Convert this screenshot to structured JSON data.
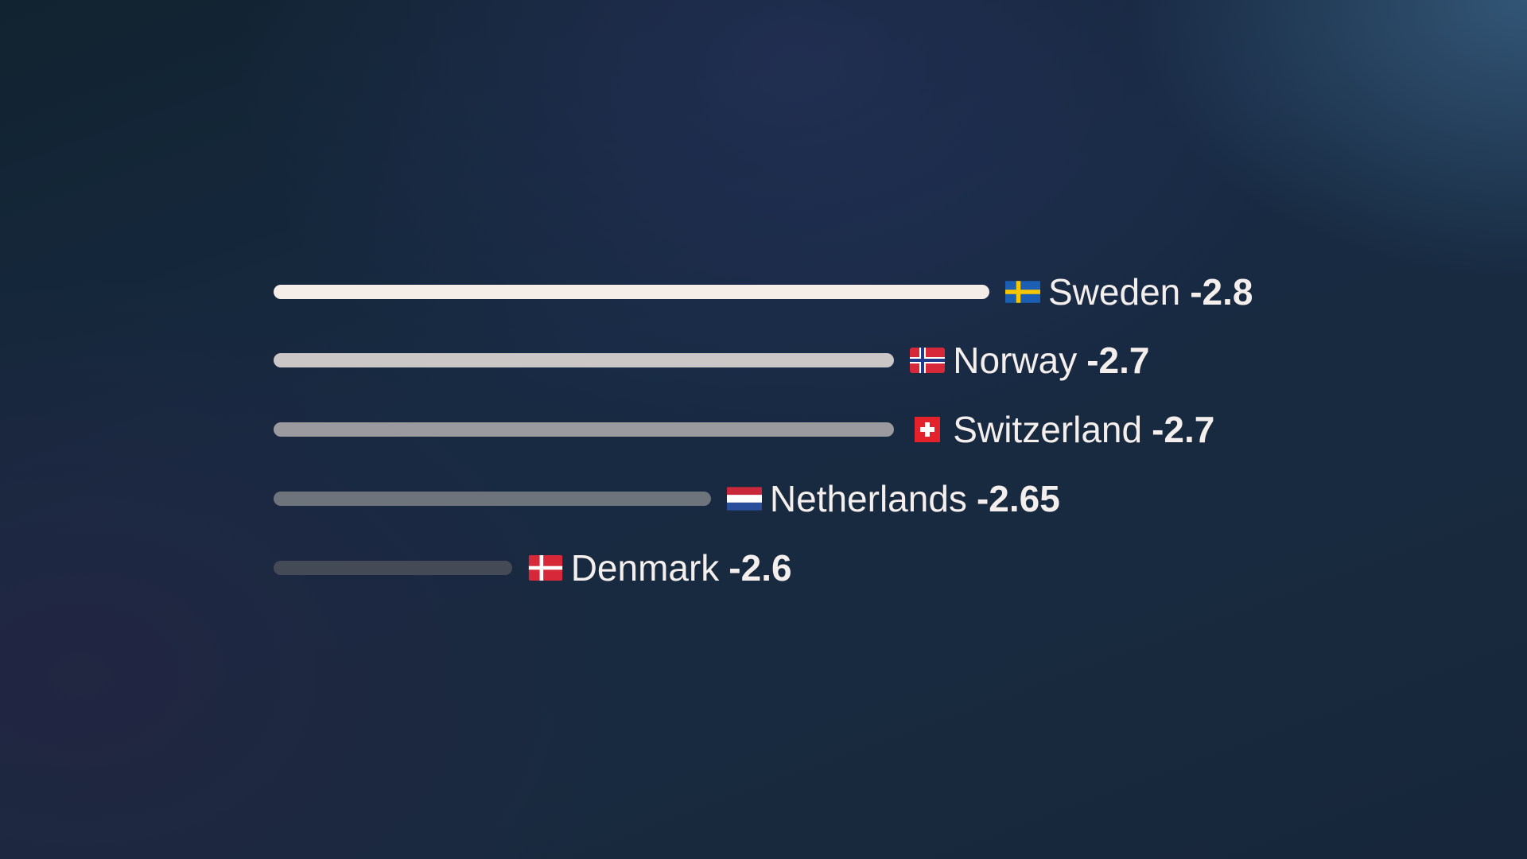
{
  "chart_data": {
    "type": "bar",
    "orientation": "horizontal",
    "categories": [
      "Sweden",
      "Norway",
      "Switzerland",
      "Netherlands",
      "Denmark"
    ],
    "values": [
      -2.8,
      -2.7,
      -2.7,
      -2.65,
      -2.6
    ],
    "value_labels": [
      "-2.8",
      "-2.7",
      "-2.7",
      "-2.65",
      "-2.6"
    ],
    "bar_fill_fraction": [
      1.0,
      0.867,
      0.867,
      0.611,
      0.333
    ],
    "flags": [
      "sweden-flag",
      "norway-flag",
      "switzerland-flag",
      "netherlands-flag",
      "denmark-flag"
    ],
    "bar_colors": [
      "#f5ede8",
      "#ccc7c7",
      "#9a9a9f",
      "#6e747c",
      "#454a57"
    ],
    "title": "",
    "xlabel": "",
    "ylabel": "",
    "grid": false
  }
}
